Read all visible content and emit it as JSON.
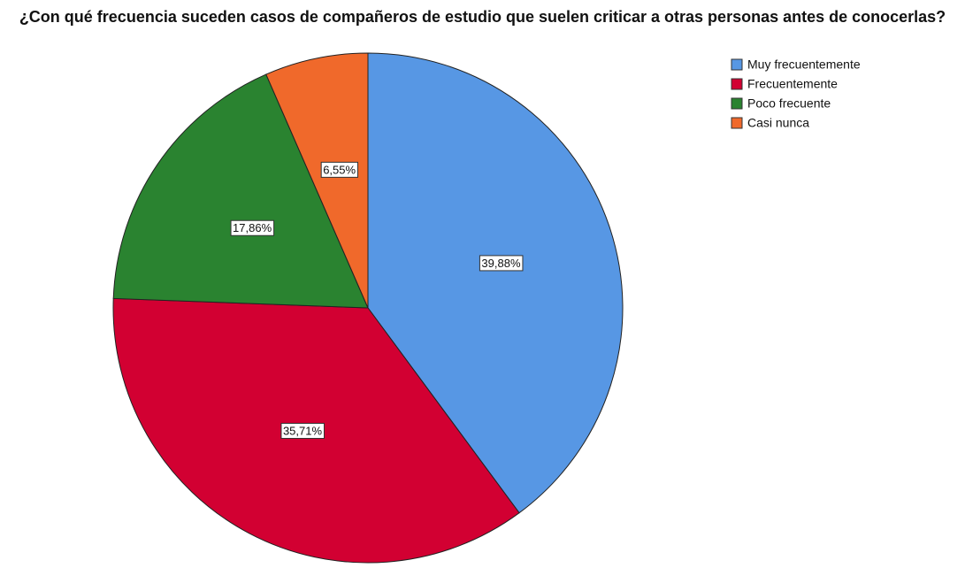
{
  "chart_data": {
    "type": "pie",
    "title": "¿Con qué frecuencia suceden casos de compañeros de estudio que suelen criticar a otras personas antes de conocerlas?",
    "categories": [
      "Muy frecuentemente",
      "Frecuentemente",
      "Poco frecuente",
      "Casi nunca"
    ],
    "values": [
      39.88,
      35.71,
      17.86,
      6.55
    ],
    "value_labels": [
      "39,88%",
      "35,71%",
      "17,86%",
      "6,55%"
    ],
    "colors": [
      "#5797e4",
      "#d20032",
      "#2a8330",
      "#f0692b"
    ],
    "legend": "top-right"
  }
}
